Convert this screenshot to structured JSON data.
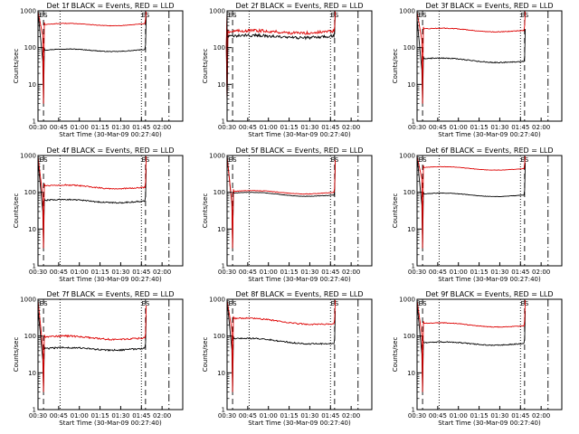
{
  "chart_data": [
    {
      "type": "line",
      "title": "Det 1f BLACK = Events, RED = LLD",
      "xlabel": "Start Time (30-Mar-09 00:27:40)",
      "ylabel": "Counts/sec",
      "x_ticks": [
        "00:30",
        "00:45",
        "01:00",
        "01:15",
        "01:30",
        "01:45",
        "02:00"
      ],
      "y_ticks": [
        "1",
        "10",
        "100",
        "1000"
      ],
      "ylim": [
        1,
        1000
      ],
      "y_scale": "log",
      "marker_label": "ES",
      "grid": false,
      "series": [
        {
          "color": "#000000",
          "level_start": 85,
          "level_end": 85,
          "noise": 0.02,
          "saas_exit": "00:34",
          "saas_entry": "01:48"
        },
        {
          "color": "#dd0000",
          "level_start": 420,
          "level_end": 430,
          "noise": 0.015,
          "saas_exit": "00:34",
          "saas_entry": "01:48"
        }
      ]
    },
    {
      "type": "line",
      "title": "Det 2f BLACK = Events, RED = LLD",
      "xlabel": "Start Time (30-Mar-09 00:27:40)",
      "ylabel": "Counts/sec",
      "x_ticks": [
        "00:30",
        "00:45",
        "01:00",
        "01:15",
        "01:30",
        "01:45",
        "02:00"
      ],
      "y_ticks": [
        "1",
        "10",
        "100",
        "1000"
      ],
      "ylim": [
        1,
        1000
      ],
      "y_scale": "log",
      "marker_label": "ES",
      "grid": false,
      "series": [
        {
          "color": "#000000",
          "level_start": 200,
          "level_end": 200,
          "noise": 0.09,
          "saas_exit": "00:30",
          "saas_entry": "01:48"
        },
        {
          "color": "#dd0000",
          "level_start": 270,
          "level_end": 270,
          "noise": 0.09,
          "saas_exit": "00:30",
          "saas_entry": "01:48"
        }
      ]
    },
    {
      "type": "line",
      "title": "Det 3f BLACK = Events, RED = LLD",
      "xlabel": "Start Time (30-Mar-09 00:27:40)",
      "ylabel": "Counts/sec",
      "x_ticks": [
        "00:30",
        "00:45",
        "01:00",
        "01:15",
        "01:30",
        "01:45",
        "02:00"
      ],
      "y_ticks": [
        "1",
        "10",
        "100",
        "1000"
      ],
      "ylim": [
        1,
        1000
      ],
      "y_scale": "log",
      "marker_label": "ES",
      "grid": false,
      "series": [
        {
          "color": "#000000",
          "level_start": 50,
          "level_end": 40,
          "noise": 0.03,
          "saas_exit": "00:34",
          "saas_entry": "01:48"
        },
        {
          "color": "#dd0000",
          "level_start": 320,
          "level_end": 280,
          "noise": 0.02,
          "saas_exit": "00:34",
          "saas_entry": "01:48"
        }
      ]
    },
    {
      "type": "line",
      "title": "Det 4f BLACK = Events, RED = LLD",
      "xlabel": "Start Time (30-Mar-09 00:27:40)",
      "ylabel": "Counts/sec",
      "x_ticks": [
        "00:30",
        "00:45",
        "01:00",
        "01:15",
        "01:30",
        "01:45",
        "02:00"
      ],
      "y_ticks": [
        "1",
        "10",
        "100",
        "1000"
      ],
      "ylim": [
        1,
        1000
      ],
      "y_scale": "log",
      "marker_label": "ES",
      "grid": false,
      "series": [
        {
          "color": "#000000",
          "level_start": 60,
          "level_end": 55,
          "noise": 0.04,
          "saas_exit": "00:34",
          "saas_entry": "01:48"
        },
        {
          "color": "#dd0000",
          "level_start": 150,
          "level_end": 130,
          "noise": 0.04,
          "saas_exit": "00:34",
          "saas_entry": "01:48"
        }
      ]
    },
    {
      "type": "line",
      "title": "Det 5f BLACK = Events, RED = LLD",
      "xlabel": "Start Time (30-Mar-09 00:27:40)",
      "ylabel": "Counts/sec",
      "x_ticks": [
        "00:30",
        "00:45",
        "01:00",
        "01:15",
        "01:30",
        "01:45",
        "02:00"
      ],
      "y_ticks": [
        "1",
        "10",
        "100",
        "1000"
      ],
      "ylim": [
        1,
        1000
      ],
      "y_scale": "log",
      "marker_label": "ES",
      "grid": false,
      "series": [
        {
          "color": "#000000",
          "level_start": 95,
          "level_end": 80,
          "noise": 0.015,
          "saas_exit": "00:34",
          "saas_entry": "01:48"
        },
        {
          "color": "#dd0000",
          "level_start": 105,
          "level_end": 95,
          "noise": 0.015,
          "saas_exit": "00:34",
          "saas_entry": "01:48"
        }
      ]
    },
    {
      "type": "line",
      "title": "Det 6f BLACK = Events, RED = LLD",
      "xlabel": "Start Time (30-Mar-09 00:27:40)",
      "ylabel": "Counts/sec",
      "x_ticks": [
        "00:30",
        "00:45",
        "01:00",
        "01:15",
        "01:30",
        "01:45",
        "02:00"
      ],
      "y_ticks": [
        "1",
        "10",
        "100",
        "1000"
      ],
      "ylim": [
        1,
        1000
      ],
      "y_scale": "log",
      "marker_label": "ES",
      "grid": false,
      "series": [
        {
          "color": "#000000",
          "level_start": 90,
          "level_end": 80,
          "noise": 0.015,
          "saas_exit": "00:34",
          "saas_entry": "01:48"
        },
        {
          "color": "#dd0000",
          "level_start": 470,
          "level_end": 420,
          "noise": 0.012,
          "saas_exit": "00:34",
          "saas_entry": "01:48"
        }
      ]
    },
    {
      "type": "line",
      "title": "Det 7f BLACK = Events, RED = LLD",
      "xlabel": "Start Time (30-Mar-09 00:27:40)",
      "ylabel": "Counts/sec",
      "x_ticks": [
        "00:30",
        "00:45",
        "01:00",
        "01:15",
        "01:30",
        "01:45",
        "02:00"
      ],
      "y_ticks": [
        "1",
        "10",
        "100",
        "1000"
      ],
      "ylim": [
        1,
        1000
      ],
      "y_scale": "log",
      "marker_label": "ES",
      "grid": false,
      "series": [
        {
          "color": "#000000",
          "level_start": 45,
          "level_end": 45,
          "noise": 0.05,
          "saas_exit": "00:34",
          "saas_entry": "01:48"
        },
        {
          "color": "#dd0000",
          "level_start": 95,
          "level_end": 85,
          "noise": 0.05,
          "saas_exit": "00:34",
          "saas_entry": "01:48"
        }
      ]
    },
    {
      "type": "line",
      "title": "Det 8f BLACK = Events, RED = LLD",
      "xlabel": "Start Time (30-Mar-09 00:27:40)",
      "ylabel": "Counts/sec",
      "x_ticks": [
        "00:30",
        "00:45",
        "01:00",
        "01:15",
        "01:30",
        "01:45",
        "02:00"
      ],
      "y_ticks": [
        "1",
        "10",
        "100",
        "1000"
      ],
      "ylim": [
        1,
        1000
      ],
      "y_scale": "log",
      "marker_label": "ES",
      "grid": false,
      "series": [
        {
          "color": "#000000",
          "level_start": 85,
          "level_end": 60,
          "noise": 0.04,
          "saas_exit": "00:34",
          "saas_entry": "01:48"
        },
        {
          "color": "#dd0000",
          "level_start": 300,
          "level_end": 200,
          "noise": 0.04,
          "saas_exit": "00:34",
          "saas_entry": "01:48"
        }
      ]
    },
    {
      "type": "line",
      "title": "Det 9f BLACK = Events, RED = LLD",
      "xlabel": "Start Time (30-Mar-09 00:27:40)",
      "ylabel": "Counts/sec",
      "x_ticks": [
        "00:30",
        "00:45",
        "01:00",
        "01:15",
        "01:30",
        "01:45",
        "02:00"
      ],
      "y_ticks": [
        "1",
        "10",
        "100",
        "1000"
      ],
      "ylim": [
        1,
        1000
      ],
      "y_scale": "log",
      "marker_label": "ES",
      "grid": false,
      "series": [
        {
          "color": "#000000",
          "level_start": 65,
          "level_end": 60,
          "noise": 0.03,
          "saas_exit": "00:34",
          "saas_entry": "01:48"
        },
        {
          "color": "#dd0000",
          "level_start": 220,
          "level_end": 180,
          "noise": 0.02,
          "saas_exit": "00:34",
          "saas_entry": "01:48"
        }
      ]
    }
  ]
}
